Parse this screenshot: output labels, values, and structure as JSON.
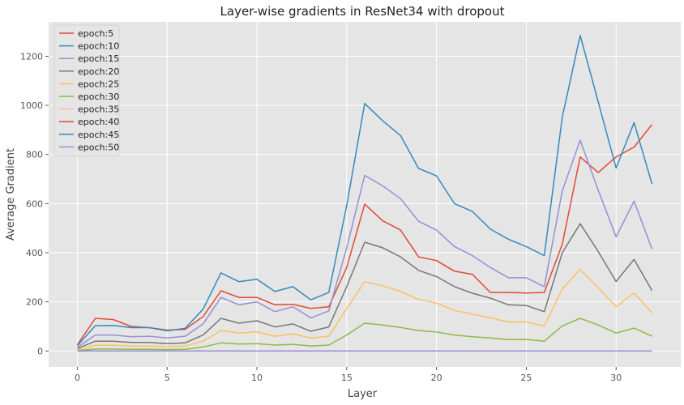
{
  "chart_data": {
    "type": "line",
    "title": "Layer-wise gradients in ResNet34 with dropout",
    "xlabel": "Layer",
    "ylabel": "Average Gradient",
    "xlim": [
      -1.6,
      33.6
    ],
    "ylim": [
      -65,
      1340
    ],
    "x_ticks": [
      0,
      5,
      10,
      15,
      20,
      25,
      30
    ],
    "y_ticks": [
      0,
      200,
      400,
      600,
      800,
      1000,
      1200
    ],
    "grid": true,
    "legend_position": "top-left",
    "x": [
      0,
      1,
      2,
      3,
      4,
      5,
      6,
      7,
      8,
      9,
      10,
      11,
      12,
      13,
      14,
      15,
      16,
      17,
      18,
      19,
      20,
      21,
      22,
      23,
      24,
      25,
      26,
      27,
      28,
      29,
      30,
      31,
      32
    ],
    "series": [
      {
        "name": "epoch:5",
        "color": "#E24A33",
        "values": [
          25,
          133,
          128,
          100,
          95,
          85,
          88,
          140,
          245,
          218,
          218,
          188,
          190,
          173,
          180,
          340,
          598,
          530,
          492,
          383,
          368,
          325,
          312,
          238,
          238,
          236,
          238,
          435,
          790,
          727,
          790,
          830,
          922
        ]
      },
      {
        "name": "epoch:10",
        "color": "#348ABD",
        "values": [
          22,
          103,
          104,
          95,
          95,
          82,
          92,
          170,
          318,
          282,
          292,
          242,
          262,
          208,
          238,
          592,
          1008,
          937,
          877,
          743,
          713,
          600,
          568,
          496,
          455,
          425,
          388,
          952,
          1285,
          1015,
          745,
          930,
          680
        ]
      },
      {
        "name": "epoch:15",
        "color": "#988ED5",
        "values": [
          15,
          65,
          65,
          58,
          60,
          53,
          60,
          110,
          218,
          188,
          200,
          160,
          180,
          135,
          163,
          420,
          715,
          672,
          620,
          528,
          492,
          425,
          388,
          340,
          298,
          298,
          262,
          652,
          858,
          655,
          465,
          610,
          415
        ]
      },
      {
        "name": "epoch:20",
        "color": "#777777",
        "values": [
          10,
          40,
          40,
          35,
          35,
          30,
          33,
          65,
          133,
          113,
          123,
          98,
          110,
          80,
          98,
          262,
          443,
          420,
          383,
          328,
          303,
          262,
          235,
          215,
          188,
          185,
          160,
          400,
          518,
          405,
          283,
          373,
          246
        ]
      },
      {
        "name": "epoch:25",
        "color": "#FBC15E",
        "values": [
          5,
          23,
          23,
          20,
          20,
          18,
          20,
          40,
          83,
          73,
          78,
          60,
          70,
          53,
          60,
          172,
          282,
          265,
          242,
          210,
          195,
          165,
          150,
          135,
          118,
          118,
          102,
          252,
          332,
          258,
          180,
          236,
          155
        ]
      },
      {
        "name": "epoch:30",
        "color": "#8EBA42",
        "values": [
          2,
          8,
          8,
          7,
          7,
          6,
          7,
          16,
          33,
          28,
          30,
          24,
          27,
          20,
          24,
          65,
          113,
          106,
          96,
          83,
          77,
          65,
          58,
          53,
          46,
          47,
          40,
          102,
          133,
          106,
          73,
          93,
          60
        ]
      },
      {
        "name": "epoch:35",
        "color": "#FFB5B8",
        "values": [
          0,
          0,
          0,
          0,
          0,
          0,
          0,
          0,
          0,
          0,
          0,
          0,
          0,
          0,
          0,
          0,
          0,
          0,
          0,
          0,
          0,
          0,
          0,
          0,
          0,
          0,
          0,
          0,
          0,
          0,
          0,
          0,
          0
        ]
      },
      {
        "name": "epoch:40",
        "color": "#E24A33",
        "values": [
          0,
          0,
          0,
          0,
          0,
          0,
          0,
          0,
          0,
          0,
          0,
          0,
          0,
          0,
          0,
          0,
          0,
          0,
          0,
          0,
          0,
          0,
          0,
          0,
          0,
          0,
          0,
          0,
          0,
          0,
          0,
          0,
          0
        ]
      },
      {
        "name": "epoch:45",
        "color": "#348ABD",
        "values": [
          0,
          0,
          0,
          0,
          0,
          0,
          0,
          0,
          0,
          0,
          0,
          0,
          0,
          0,
          0,
          0,
          0,
          0,
          0,
          0,
          0,
          0,
          0,
          0,
          0,
          0,
          0,
          0,
          0,
          0,
          0,
          0,
          0
        ]
      },
      {
        "name": "epoch:50",
        "color": "#988ED5",
        "values": [
          0,
          0,
          0,
          0,
          0,
          0,
          0,
          0,
          0,
          0,
          0,
          0,
          0,
          0,
          0,
          0,
          0,
          0,
          0,
          0,
          0,
          0,
          0,
          0,
          0,
          0,
          0,
          0,
          0,
          0,
          0,
          0,
          0
        ]
      }
    ]
  }
}
